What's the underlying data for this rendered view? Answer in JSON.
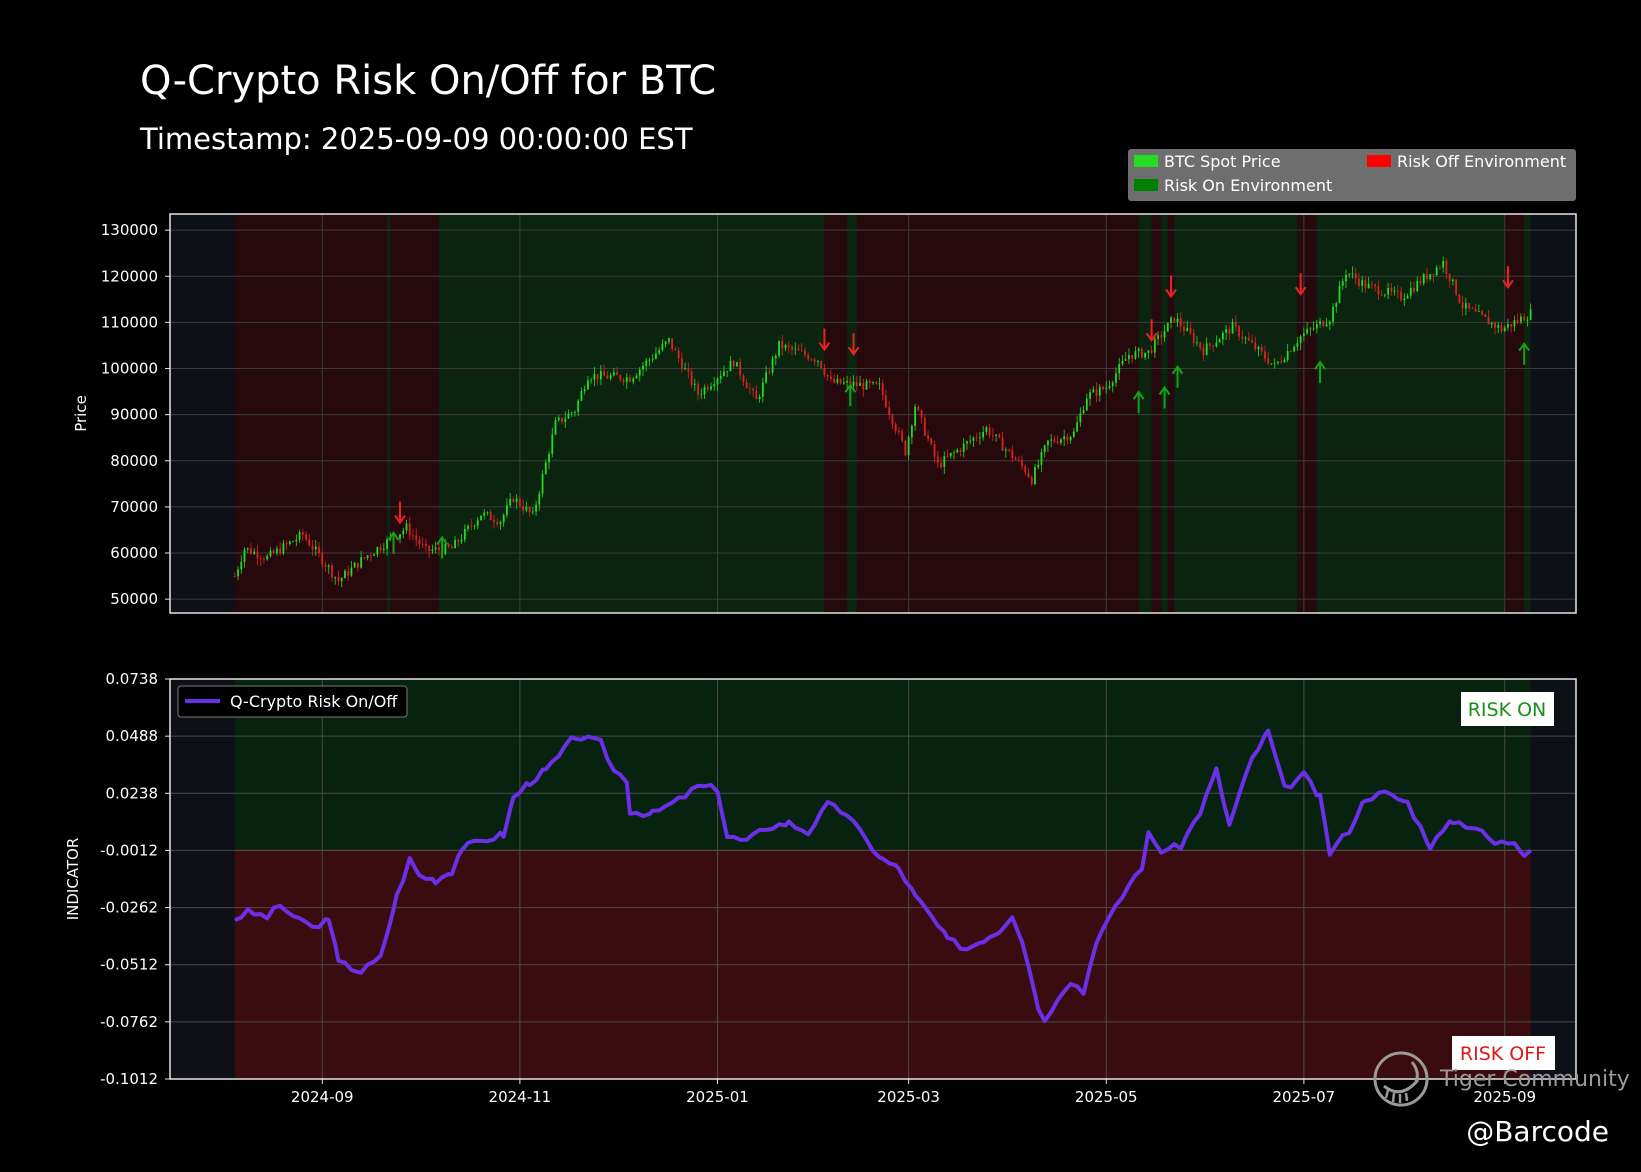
{
  "header": {
    "title": "Q-Crypto Risk On/Off for BTC",
    "subtitle": "Timestamp: 2025-09-09 00:00:00 EST"
  },
  "watermark": {
    "brand": "Tiger Community",
    "handle": "@Barcode"
  },
  "colors": {
    "background": "#000000",
    "panel_bg": "#0d1117",
    "risk_on_bg": "#0a2410",
    "risk_off_bg": "#26090c",
    "risk_on_zone": "#07220f",
    "risk_off_zone": "#3a0c10",
    "up_candle": "#22dd22",
    "down_candle": "#dd2222",
    "indicator_line": "#6a2fe6",
    "buy_arrow": "#18a018",
    "sell_arrow": "#ee2222"
  },
  "chart_data": [
    {
      "type": "candlestick",
      "ylabel": "Price",
      "ylim": [
        47000,
        133500
      ],
      "yticks": [
        50000,
        60000,
        70000,
        80000,
        90000,
        100000,
        110000,
        120000,
        130000
      ],
      "xlim": [
        "2024-07-16",
        "2025-09-23"
      ],
      "xticks": [
        "2024-09",
        "2024-11",
        "2025-01",
        "2025-03",
        "2025-05",
        "2025-07",
        "2025-09"
      ],
      "legend": {
        "placement": "top-right",
        "entries": [
          "BTC Spot Price",
          "Risk Off Environment",
          "Risk On Environment"
        ]
      },
      "price_path": [
        [
          "2024-08-05",
          55000
        ],
        [
          "2024-08-08",
          61000
        ],
        [
          "2024-08-15",
          59000
        ],
        [
          "2024-08-26",
          64000
        ],
        [
          "2024-09-06",
          54000
        ],
        [
          "2024-09-14",
          59000
        ],
        [
          "2024-09-27",
          65500
        ],
        [
          "2024-10-03",
          60500
        ],
        [
          "2024-10-11",
          61000
        ],
        [
          "2024-10-20",
          68500
        ],
        [
          "2024-10-26",
          67000
        ],
        [
          "2024-10-30",
          72000
        ],
        [
          "2024-11-05",
          68000
        ],
        [
          "2024-11-12",
          88000
        ],
        [
          "2024-11-18",
          91000
        ],
        [
          "2024-11-22",
          98500
        ],
        [
          "2024-12-05",
          98000
        ],
        [
          "2024-12-17",
          106000
        ],
        [
          "2024-12-26",
          94500
        ],
        [
          "2025-01-06",
          101500
        ],
        [
          "2025-01-13",
          93000
        ],
        [
          "2025-01-20",
          105000
        ],
        [
          "2025-02-01",
          102000
        ],
        [
          "2025-02-05",
          97000
        ],
        [
          "2025-02-20",
          96000
        ],
        [
          "2025-02-28",
          82000
        ],
        [
          "2025-03-03",
          92000
        ],
        [
          "2025-03-10",
          79000
        ],
        [
          "2025-03-25",
          87000
        ],
        [
          "2025-04-06",
          78000
        ],
        [
          "2025-04-08",
          76000
        ],
        [
          "2025-04-13",
          84000
        ],
        [
          "2025-04-21",
          86000
        ],
        [
          "2025-04-25",
          94000
        ],
        [
          "2025-05-01",
          96000
        ],
        [
          "2025-05-08",
          103000
        ],
        [
          "2025-05-14",
          103500
        ],
        [
          "2025-05-22",
          111000
        ],
        [
          "2025-05-31",
          104000
        ],
        [
          "2025-06-09",
          109000
        ],
        [
          "2025-06-22",
          100500
        ],
        [
          "2025-06-30",
          107000
        ],
        [
          "2025-07-09",
          111000
        ],
        [
          "2025-07-14",
          121000
        ],
        [
          "2025-07-20",
          118000
        ],
        [
          "2025-07-31",
          115500
        ],
        [
          "2025-08-13",
          123000
        ],
        [
          "2025-08-19",
          113500
        ],
        [
          "2025-08-31",
          108500
        ],
        [
          "2025-09-09",
          112000
        ]
      ],
      "regimes": [
        {
          "start": "2024-08-05",
          "end": "2024-09-21",
          "state": "off"
        },
        {
          "start": "2024-09-21",
          "end": "2024-09-22",
          "state": "on"
        },
        {
          "start": "2024-09-22",
          "end": "2024-10-07",
          "state": "off"
        },
        {
          "start": "2024-10-07",
          "end": "2025-02-03",
          "state": "on"
        },
        {
          "start": "2025-02-03",
          "end": "2025-02-10",
          "state": "off"
        },
        {
          "start": "2025-02-10",
          "end": "2025-02-13",
          "state": "on"
        },
        {
          "start": "2025-02-13",
          "end": "2025-05-11",
          "state": "off"
        },
        {
          "start": "2025-05-11",
          "end": "2025-05-15",
          "state": "on"
        },
        {
          "start": "2025-05-15",
          "end": "2025-05-18",
          "state": "off"
        },
        {
          "start": "2025-05-18",
          "end": "2025-05-20",
          "state": "on"
        },
        {
          "start": "2025-05-20",
          "end": "2025-05-22",
          "state": "off"
        },
        {
          "start": "2025-05-22",
          "end": "2025-06-29",
          "state": "on"
        },
        {
          "start": "2025-06-29",
          "end": "2025-07-05",
          "state": "off"
        },
        {
          "start": "2025-07-05",
          "end": "2025-09-01",
          "state": "on"
        },
        {
          "start": "2025-09-01",
          "end": "2025-09-07",
          "state": "off"
        },
        {
          "start": "2025-09-07",
          "end": "2025-09-09",
          "state": "on"
        }
      ],
      "signals": [
        {
          "date": "2024-09-23",
          "type": "on",
          "price": 62000
        },
        {
          "date": "2024-09-25",
          "type": "off",
          "price": 69000
        },
        {
          "date": "2024-10-08",
          "type": "on",
          "price": 61000
        },
        {
          "date": "2025-02-03",
          "type": "off",
          "price": 106500
        },
        {
          "date": "2025-02-11",
          "type": "on",
          "price": 94000
        },
        {
          "date": "2025-02-12",
          "type": "off",
          "price": 105500
        },
        {
          "date": "2025-05-11",
          "type": "on",
          "price": 92500
        },
        {
          "date": "2025-05-15",
          "type": "off",
          "price": 108500
        },
        {
          "date": "2025-05-19",
          "type": "on",
          "price": 93500
        },
        {
          "date": "2025-05-21",
          "type": "off",
          "price": 118000
        },
        {
          "date": "2025-05-23",
          "type": "on",
          "price": 98000
        },
        {
          "date": "2025-06-30",
          "type": "off",
          "price": 118500
        },
        {
          "date": "2025-07-06",
          "type": "on",
          "price": 99000
        },
        {
          "date": "2025-09-02",
          "type": "off",
          "price": 120000
        },
        {
          "date": "2025-09-07",
          "type": "on",
          "price": 103000
        }
      ]
    },
    {
      "type": "line",
      "ylabel": "INDICATOR",
      "ylim": [
        -0.1012,
        0.0738
      ],
      "yticks": [
        "-0.1012",
        "-0.0762",
        "-0.0512",
        "-0.0262",
        "-0.0012",
        "0.0238",
        "0.0488",
        "0.0738"
      ],
      "xticks": [
        "2024-09",
        "2024-11",
        "2025-01",
        "2025-03",
        "2025-05",
        "2025-07",
        "2025-09"
      ],
      "threshold": -0.0012,
      "zone_labels": {
        "above": "RISK ON",
        "below": "RISK OFF"
      },
      "series": [
        {
          "name": "Q-Crypto Risk On/Off",
          "points": [
            [
              "2024-08-05",
              -0.0312
            ],
            [
              "2024-08-09",
              -0.0282
            ],
            [
              "2024-08-15",
              -0.0302
            ],
            [
              "2024-08-19",
              -0.0252
            ],
            [
              "2024-08-25",
              -0.0322
            ],
            [
              "2024-08-31",
              -0.0352
            ],
            [
              "2024-09-03",
              -0.0302
            ],
            [
              "2024-09-06",
              -0.0502
            ],
            [
              "2024-09-13",
              -0.0542
            ],
            [
              "2024-09-19",
              -0.0482
            ],
            [
              "2024-09-24",
              -0.0212
            ],
            [
              "2024-09-28",
              -0.0052
            ],
            [
              "2024-10-01",
              -0.0122
            ],
            [
              "2024-10-06",
              -0.0142
            ],
            [
              "2024-10-11",
              -0.0102
            ],
            [
              "2024-10-14",
              -0.0002
            ],
            [
              "2024-10-22",
              0.0038
            ],
            [
              "2024-10-27",
              0.0058
            ],
            [
              "2024-10-30",
              0.0218
            ],
            [
              "2024-11-04",
              0.0288
            ],
            [
              "2024-11-09",
              0.0338
            ],
            [
              "2024-11-13",
              0.0398
            ],
            [
              "2024-11-18",
              0.0488
            ],
            [
              "2024-11-26",
              0.0458
            ],
            [
              "2024-11-30",
              0.0338
            ],
            [
              "2024-12-04",
              0.0298
            ],
            [
              "2024-12-05",
              0.0158
            ],
            [
              "2024-12-12",
              0.0148
            ],
            [
              "2024-12-20",
              0.0208
            ],
            [
              "2024-12-26",
              0.0268
            ],
            [
              "2025-01-01",
              0.0258
            ],
            [
              "2025-01-04",
              0.0048
            ],
            [
              "2025-01-10",
              0.0028
            ],
            [
              "2025-01-16",
              0.0088
            ],
            [
              "2025-01-23",
              0.0108
            ],
            [
              "2025-01-29",
              0.0068
            ],
            [
              "2025-02-04",
              0.0188
            ],
            [
              "2025-02-10",
              0.0148
            ],
            [
              "2025-02-16",
              0.0028
            ],
            [
              "2025-02-21",
              -0.0052
            ],
            [
              "2025-02-26",
              -0.0092
            ],
            [
              "2025-03-03",
              -0.0212
            ],
            [
              "2025-03-08",
              -0.0302
            ],
            [
              "2025-03-13",
              -0.0402
            ],
            [
              "2025-03-19",
              -0.0442
            ],
            [
              "2025-03-24",
              -0.0402
            ],
            [
              "2025-03-29",
              -0.0362
            ],
            [
              "2025-04-02",
              -0.0292
            ],
            [
              "2025-04-05",
              -0.0402
            ],
            [
              "2025-04-10",
              -0.0692
            ],
            [
              "2025-04-12",
              -0.0762
            ],
            [
              "2025-04-16",
              -0.0652
            ],
            [
              "2025-04-20",
              -0.0582
            ],
            [
              "2025-04-24",
              -0.0632
            ],
            [
              "2025-04-28",
              -0.0402
            ],
            [
              "2025-05-04",
              -0.0262
            ],
            [
              "2025-05-08",
              -0.0162
            ],
            [
              "2025-05-12",
              -0.0082
            ],
            [
              "2025-05-14",
              0.0058
            ],
            [
              "2025-05-18",
              -0.0012
            ],
            [
              "2025-05-24",
              0.0008
            ],
            [
              "2025-05-30",
              0.0158
            ],
            [
              "2025-06-04",
              0.0338
            ],
            [
              "2025-06-08",
              0.0098
            ],
            [
              "2025-06-11",
              0.0228
            ],
            [
              "2025-06-15",
              0.0388
            ],
            [
              "2025-06-20",
              0.0508
            ],
            [
              "2025-06-25",
              0.0258
            ],
            [
              "2025-07-01",
              0.0318
            ],
            [
              "2025-07-06",
              0.0218
            ],
            [
              "2025-07-09",
              -0.0022
            ],
            [
              "2025-07-15",
              0.0078
            ],
            [
              "2025-07-20",
              0.0218
            ],
            [
              "2025-07-26",
              0.0238
            ],
            [
              "2025-08-02",
              0.0198
            ],
            [
              "2025-08-09",
              0.0008
            ],
            [
              "2025-08-16",
              0.0118
            ],
            [
              "2025-08-23",
              0.0088
            ],
            [
              "2025-08-29",
              0.0018
            ],
            [
              "2025-09-04",
              0.0028
            ],
            [
              "2025-09-07",
              -0.0022
            ],
            [
              "2025-09-09",
              -0.0012
            ]
          ]
        }
      ],
      "legend": {
        "placement": "top-left",
        "entries": [
          "Q-Crypto Risk On/Off"
        ]
      }
    }
  ]
}
